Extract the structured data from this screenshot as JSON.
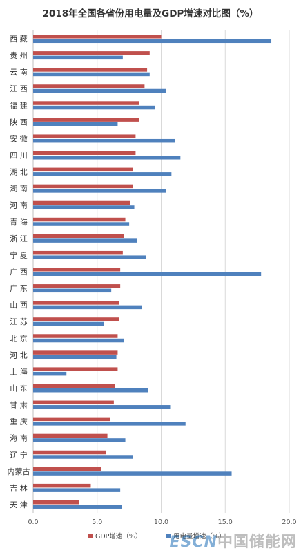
{
  "chart_data": {
    "type": "bar",
    "orientation": "horizontal",
    "title": "2018年全国各省份用电量及GDP增速对比图（%）",
    "categories": [
      "西 藏",
      "贵 州",
      "云 南",
      "江 西",
      "福 建",
      "陕 西",
      "安 徽",
      "四 川",
      "湖 北",
      "湖 南",
      "河 南",
      "青 海",
      "浙 江",
      "宁 夏",
      "广 西",
      "广 东",
      "山 西",
      "江 苏",
      "北 京",
      "河 北",
      "上 海",
      "山 东",
      "甘 肃",
      "重 庆",
      "海 南",
      "辽 宁",
      "内蒙古",
      "吉 林",
      "天 津"
    ],
    "series": [
      {
        "name": "GDP增速（%）",
        "color": "#c0504d",
        "values": [
          10.0,
          9.1,
          8.9,
          8.7,
          8.3,
          8.3,
          8.0,
          8.0,
          7.8,
          7.8,
          7.6,
          7.2,
          7.1,
          7.0,
          6.8,
          6.8,
          6.7,
          6.7,
          6.6,
          6.6,
          6.6,
          6.4,
          6.3,
          6.0,
          5.8,
          5.7,
          5.3,
          4.5,
          3.6
        ]
      },
      {
        "name": "用电量增速（%）",
        "color": "#4f81bd",
        "values": [
          18.6,
          7.0,
          9.1,
          10.4,
          9.5,
          6.6,
          11.1,
          11.5,
          10.8,
          10.4,
          7.9,
          7.5,
          8.1,
          8.8,
          17.8,
          6.1,
          8.5,
          5.5,
          7.1,
          6.5,
          2.6,
          9.0,
          10.7,
          11.9,
          7.2,
          7.8,
          15.5,
          6.8,
          6.9
        ]
      }
    ],
    "x_ticks": [
      "0.0",
      "5.0",
      "10.0",
      "15.0",
      "20.0"
    ],
    "xlim": [
      0,
      20
    ],
    "grid": true,
    "legend_position": "bottom"
  },
  "watermark": {
    "part_a": "ESCN",
    "part_b": "中国储能网"
  }
}
